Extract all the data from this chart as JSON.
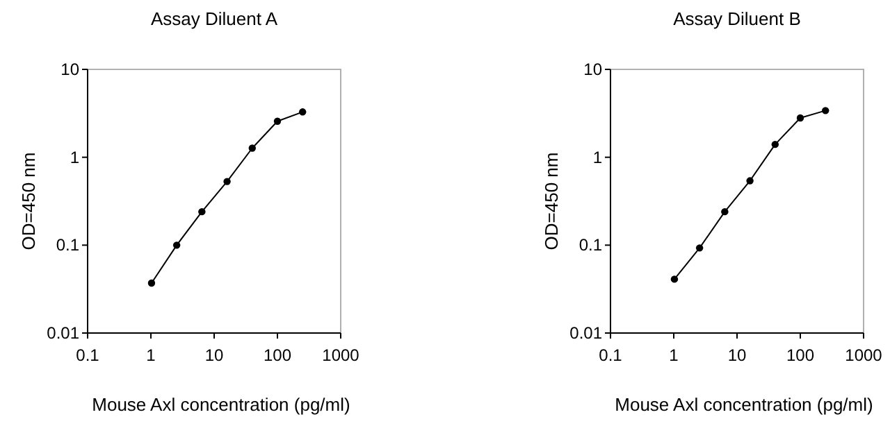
{
  "chart_data": [
    {
      "type": "line",
      "title": "Assay Diluent A",
      "xlabel": "Mouse Axl concentration (pg/ml)",
      "ylabel": "OD=450 nm",
      "log": "xy",
      "marker": "circle",
      "line_style": "solid",
      "xlim": [
        0.1,
        1000
      ],
      "xticks": [
        0.1,
        1,
        10,
        100,
        1000
      ],
      "ylim": [
        0.01,
        10
      ],
      "yticks": [
        0.01,
        0.1,
        1,
        10
      ],
      "x": [
        1.024,
        2.56,
        6.4,
        16,
        40,
        100,
        250
      ],
      "series": [
        {
          "color": "#000000",
          "values": [
            0.037,
            0.1,
            0.24,
            0.53,
            1.27,
            2.57,
            3.28
          ]
        }
      ]
    },
    {
      "type": "line",
      "title": "Assay Diluent B",
      "xlabel": "Mouse Axl concentration (pg/ml)",
      "ylabel": "OD=450 nm",
      "log": "xy",
      "marker": "circle",
      "line_style": "solid",
      "xlim": [
        0.1,
        1000
      ],
      "xticks": [
        0.1,
        1,
        10,
        100,
        1000
      ],
      "ylim": [
        0.01,
        10
      ],
      "yticks": [
        0.01,
        0.1,
        1,
        10
      ],
      "x": [
        1.024,
        2.56,
        6.4,
        16,
        40,
        100,
        250
      ],
      "series": [
        {
          "color": "#000000",
          "values": [
            0.041,
            0.093,
            0.24,
            0.54,
            1.4,
            2.8,
            3.4
          ]
        }
      ]
    }
  ]
}
